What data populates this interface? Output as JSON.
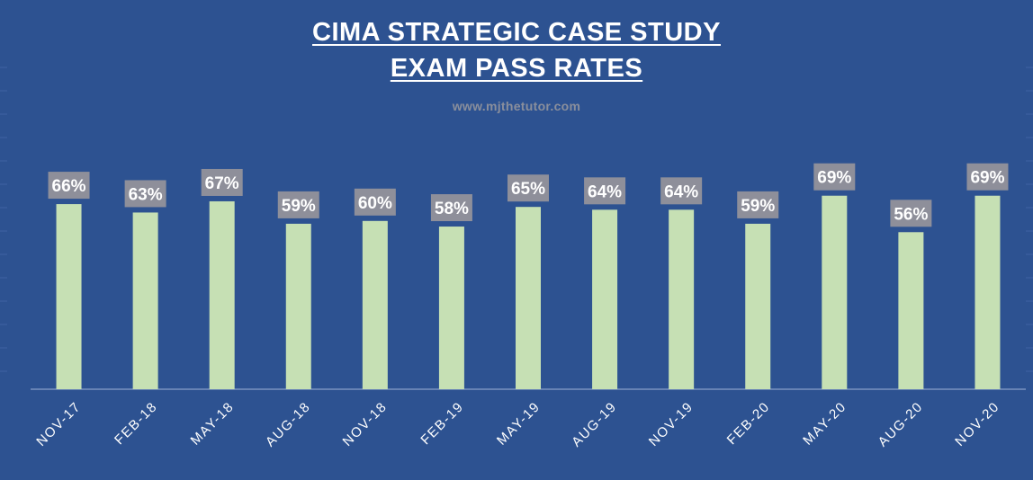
{
  "chart": {
    "title_line1": "CIMA STRATEGIC CASE STUDY",
    "title_line2": "EXAM PASS RATES",
    "subtitle": "www.mjthetutor.com"
  },
  "colors": {
    "background": "#2d5291",
    "bar": "#c6e0b4",
    "label_bg": "#8e8f9a",
    "text": "#ffffff"
  },
  "chart_data": {
    "type": "bar",
    "title": "CIMA STRATEGIC CASE STUDY EXAM PASS RATES",
    "subtitle": "www.mjthetutor.com",
    "xlabel": "",
    "ylabel": "",
    "categories": [
      "NOV-17",
      "FEB-18",
      "MAY-18",
      "AUG-18",
      "NOV-18",
      "FEB-19",
      "MAY-19",
      "AUG-19",
      "NOV-19",
      "FEB-20",
      "MAY-20",
      "AUG-20",
      "NOV-20"
    ],
    "values": [
      66,
      63,
      67,
      59,
      60,
      58,
      65,
      64,
      64,
      59,
      69,
      56,
      69
    ],
    "data_labels": [
      "66%",
      "63%",
      "67%",
      "59%",
      "60%",
      "58%",
      "65%",
      "64%",
      "64%",
      "59%",
      "69%",
      "56%",
      "69%"
    ],
    "ylim": [
      0,
      100
    ],
    "grid": false,
    "legend": "none"
  }
}
